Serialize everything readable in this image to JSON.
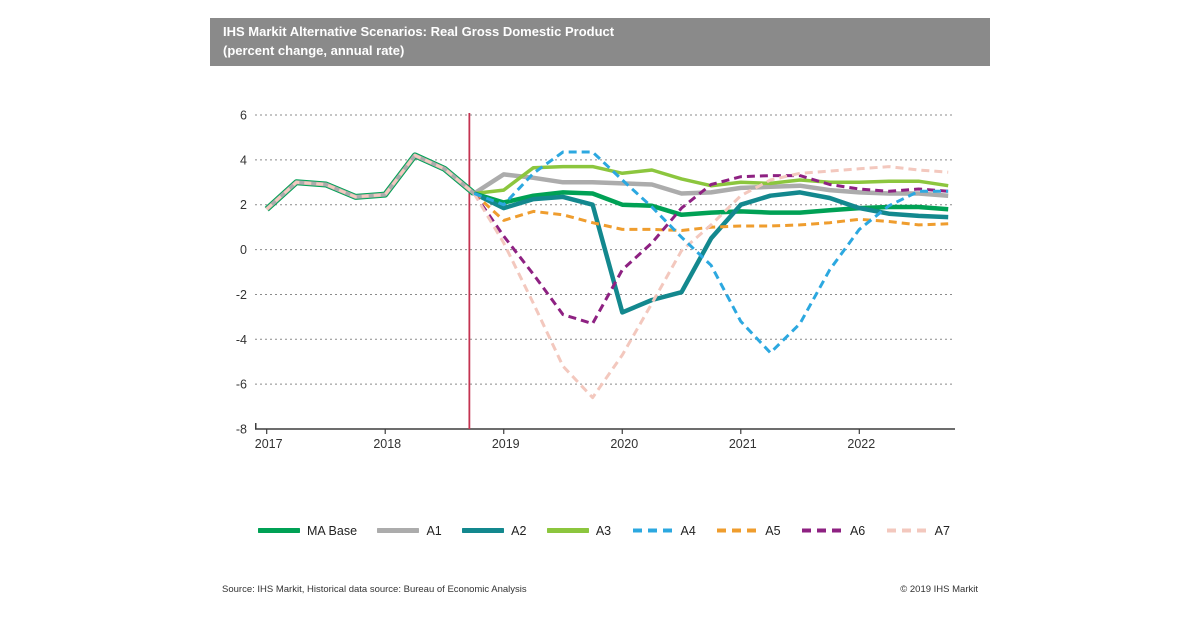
{
  "title": {
    "line1": "IHS Markit Alternative Scenarios: Real Gross Domestic Product",
    "line2": "(percent change, annual rate)"
  },
  "footer": {
    "source": "Source: IHS Markit, Historical data source: Bureau of Economic Analysis",
    "copyright": "© 2019 IHS Markit"
  },
  "colors": {
    "title_bar": "#8A8A8A",
    "forecast_line": "#C43351",
    "grid": "#8B8B8B",
    "axis": "#3D3D3D",
    "text": "#333333"
  },
  "chart_data": {
    "type": "line",
    "title": "IHS Markit Alternative Scenarios: Real Gross Domestic Product (percent change, annual rate)",
    "x_years": [
      2017,
      2018,
      2019,
      2020,
      2021,
      2022
    ],
    "quarters_per_year": 4,
    "n_points": 24,
    "ylim": [
      -8,
      6
    ],
    "yticks": [
      6,
      4,
      2,
      0,
      -2,
      -4,
      -6,
      -8
    ],
    "grid": true,
    "legend_position": "bottom",
    "forecast_start_year_fraction": 2018.71,
    "history": {
      "name": "Historical (common to all scenarios)",
      "start_index": 0,
      "values": [
        1.8,
        3.0,
        2.9,
        2.35,
        2.45,
        4.2,
        3.6,
        2.5
      ],
      "layers": [
        {
          "color": "#00A155",
          "width": 6,
          "dash": null
        },
        {
          "color": "#ACACAC",
          "width": 4,
          "dash": null
        },
        {
          "color": "#F3C8BE",
          "width": 3,
          "dash": "7 5"
        }
      ]
    },
    "series": [
      {
        "name": "MA Base",
        "color": "#00A155",
        "width": 4.5,
        "dash": null,
        "start_index": 7,
        "values": [
          2.5,
          2.1,
          2.4,
          2.55,
          2.5,
          2.0,
          1.95,
          1.55,
          1.65,
          1.7,
          1.65,
          1.65,
          1.75,
          1.85,
          1.9,
          1.9,
          1.8
        ]
      },
      {
        "name": "A1",
        "color": "#ACACAC",
        "width": 4.5,
        "dash": null,
        "start_index": 7,
        "values": [
          2.5,
          3.35,
          3.2,
          3.0,
          3.0,
          2.95,
          2.9,
          2.5,
          2.55,
          2.75,
          2.8,
          2.85,
          2.65,
          2.55,
          2.5,
          2.5,
          2.4
        ]
      },
      {
        "name": "A2",
        "color": "#13888E",
        "width": 4.5,
        "dash": null,
        "start_index": 7,
        "values": [
          2.5,
          1.85,
          2.25,
          2.35,
          2.0,
          -2.8,
          -2.25,
          -1.9,
          0.5,
          2.0,
          2.4,
          2.55,
          2.3,
          1.85,
          1.6,
          1.5,
          1.45
        ]
      },
      {
        "name": "A3",
        "color": "#8CC63E",
        "width": 3.5,
        "dash": null,
        "start_index": 7,
        "values": [
          2.5,
          2.65,
          3.65,
          3.7,
          3.7,
          3.4,
          3.55,
          3.15,
          2.85,
          3.0,
          2.95,
          3.1,
          3.0,
          3.0,
          3.05,
          3.05,
          2.85
        ]
      },
      {
        "name": "A4",
        "color": "#2CA8E0",
        "width": 3,
        "dash": "8 5",
        "start_index": 7,
        "values": [
          2.5,
          2.0,
          3.4,
          4.35,
          4.35,
          3.1,
          1.9,
          0.55,
          -0.7,
          -3.2,
          -4.6,
          -3.3,
          -0.9,
          0.9,
          1.95,
          2.6,
          2.6
        ]
      },
      {
        "name": "A5",
        "color": "#EF9D2E",
        "width": 3,
        "dash": "8 5",
        "start_index": 7,
        "values": [
          2.5,
          1.3,
          1.7,
          1.55,
          1.2,
          0.9,
          0.9,
          0.85,
          1.0,
          1.05,
          1.05,
          1.1,
          1.2,
          1.35,
          1.25,
          1.1,
          1.15
        ]
      },
      {
        "name": "A6",
        "color": "#8E2182",
        "width": 3,
        "dash": "8 5",
        "start_index": 7,
        "values": [
          2.5,
          0.6,
          -1.1,
          -2.9,
          -3.3,
          -0.9,
          0.3,
          1.85,
          2.9,
          3.25,
          3.3,
          3.3,
          2.9,
          2.7,
          2.6,
          2.7,
          2.6
        ]
      },
      {
        "name": "A7",
        "color": "#F3C8BE",
        "width": 3,
        "dash": "8 5",
        "start_index": 7,
        "values": [
          2.5,
          0.3,
          -2.4,
          -5.2,
          -6.6,
          -4.7,
          -2.4,
          -0.05,
          1.1,
          2.4,
          3.1,
          3.4,
          3.5,
          3.6,
          3.7,
          3.55,
          3.45
        ]
      }
    ],
    "draw_order": [
      "A1",
      "A3",
      "MA Base",
      "A2",
      "A5",
      "A6",
      "A7",
      "A4"
    ],
    "legend": [
      "MA Base",
      "A1",
      "A2",
      "A3",
      "A4",
      "A5",
      "A6",
      "A7"
    ]
  }
}
